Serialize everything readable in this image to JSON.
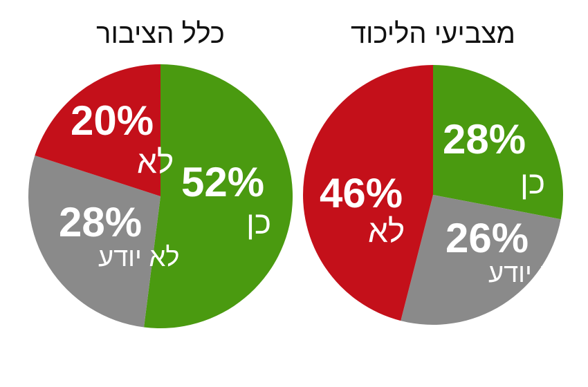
{
  "chart_data": [
    {
      "type": "pie",
      "title": "מצביעי הליכוד",
      "slices": [
        {
          "label": "כן",
          "value": 28,
          "value_text": "28%",
          "color": "#4a9a10"
        },
        {
          "label": "לא יודע",
          "value": 26,
          "value_text": "26%",
          "color": "#8a8a8a"
        },
        {
          "label": "לא",
          "value": 46,
          "value_text": "46%",
          "color": "#c4101a"
        }
      ]
    },
    {
      "type": "pie",
      "title": "כלל הציבור",
      "slices": [
        {
          "label": "כן",
          "value": 52,
          "value_text": "52%",
          "color": "#4a9a10"
        },
        {
          "label": "לא יודע",
          "value": 28,
          "value_text": "28%",
          "color": "#8a8a8a"
        },
        {
          "label": "לא",
          "value": 20,
          "value_text": "20%",
          "color": "#c4101a"
        }
      ]
    }
  ]
}
